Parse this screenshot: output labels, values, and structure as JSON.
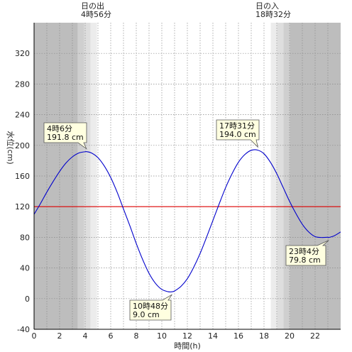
{
  "chart_data": {
    "type": "line",
    "title": "",
    "xlabel": "時間(h)",
    "ylabel": "水位(cm)",
    "xlim": [
      0,
      24
    ],
    "ylim": [
      -40,
      360
    ],
    "grid": true,
    "x_ticks": [
      0,
      2,
      4,
      6,
      8,
      10,
      12,
      14,
      16,
      18,
      20,
      22
    ],
    "y_ticks": [
      -40,
      0,
      40,
      80,
      120,
      160,
      200,
      240,
      280,
      320
    ],
    "reference_line": {
      "value": 120,
      "color": "#dd0000"
    },
    "line_color": "#0000cc",
    "sun": {
      "sunrise_label": "日の出",
      "sunrise_time": "4時56分",
      "sunrise_hour": 4.93,
      "sunset_label": "日の入",
      "sunset_time": "18時32分",
      "sunset_hour": 18.53
    },
    "series": [
      {
        "x": [
          0,
          0.5,
          1,
          1.5,
          2,
          2.5,
          3,
          3.5,
          4,
          4.1,
          4.5,
          5,
          5.5,
          6,
          6.5,
          7,
          7.5,
          8,
          8.5,
          9,
          9.5,
          10,
          10.5,
          10.8,
          11,
          11.5,
          12,
          12.5,
          13,
          13.5,
          14,
          14.5,
          15,
          15.5,
          16,
          16.5,
          17,
          17.5,
          18,
          18.5,
          19,
          19.5,
          20,
          20.5,
          21,
          21.5,
          22,
          22.5,
          23,
          23.07,
          23.5,
          24
        ],
        "values": [
          110,
          124,
          139,
          153,
          166,
          177,
          185,
          190,
          191.7,
          191.8,
          190,
          184,
          173,
          158,
          139,
          117,
          95,
          72,
          51,
          33,
          20,
          12,
          9,
          9.0,
          10,
          16,
          26,
          41,
          59,
          80,
          102,
          124,
          145,
          163,
          178,
          188,
          193.5,
          193.8,
          189,
          178,
          163,
          145,
          127,
          111,
          97,
          87,
          81,
          79.8,
          80.1,
          79.8,
          82,
          87
        ]
      }
    ],
    "annotations": [
      {
        "time": "4時6分",
        "value": "191.8 cm",
        "x": 4.1,
        "y": 191.8
      },
      {
        "time": "10時48分",
        "value": "9.0 cm",
        "x": 10.8,
        "y": 9.0
      },
      {
        "time": "17時31分",
        "value": "194.0 cm",
        "x": 17.52,
        "y": 194.0
      },
      {
        "time": "23時4分",
        "value": "79.8 cm",
        "x": 23.07,
        "y": 79.8
      }
    ]
  }
}
